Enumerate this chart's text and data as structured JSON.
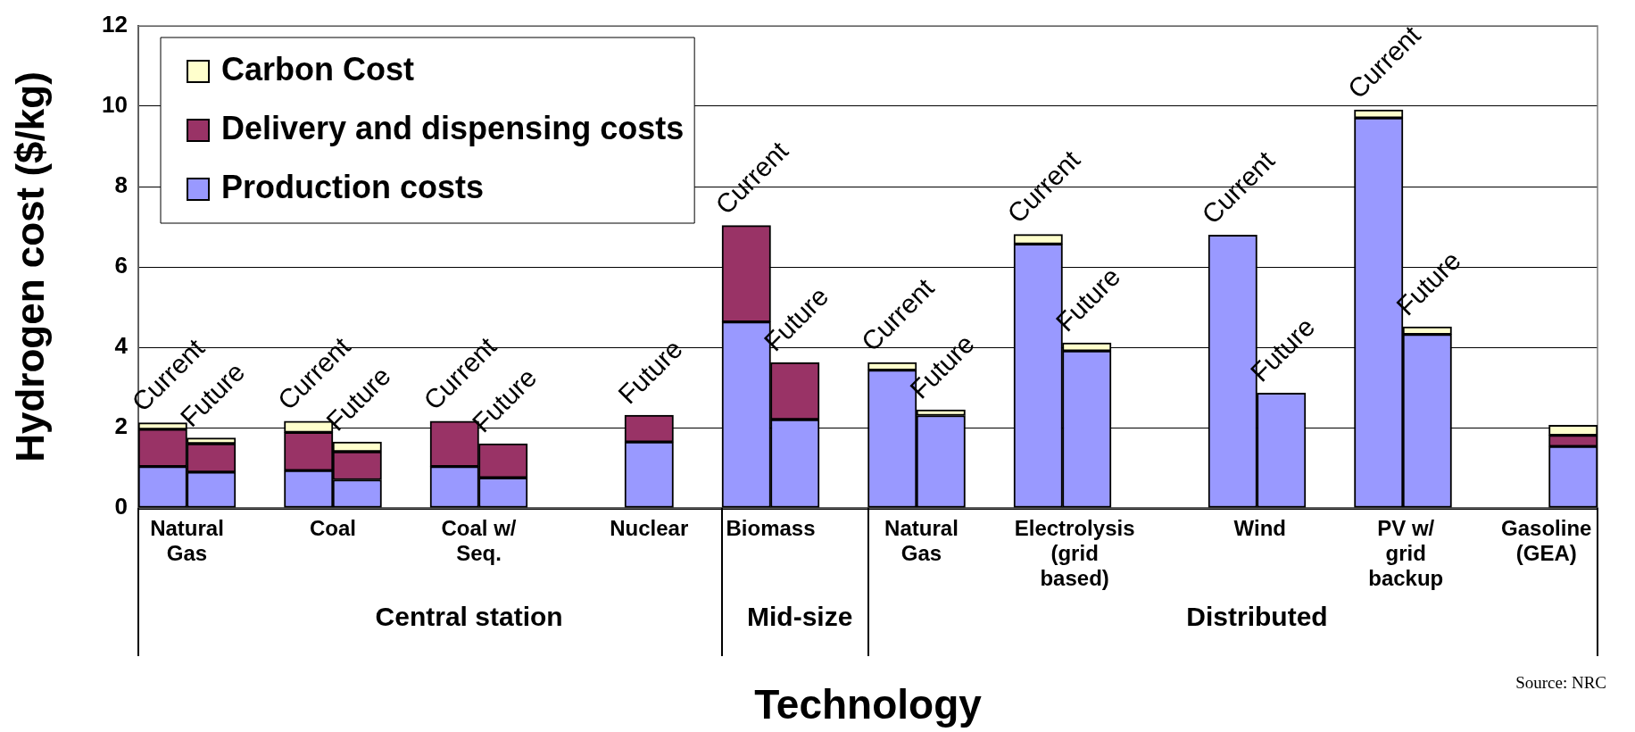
{
  "chart_data": {
    "type": "bar",
    "stacked": true,
    "xlabel": "Technology",
    "ylabel": "Hydrogen cost ($/kg)",
    "categories": [
      null,
      null,
      null,
      null,
      null,
      null,
      null,
      null,
      null,
      null,
      null,
      null,
      null,
      null,
      null,
      null,
      null,
      null,
      null,
      null,
      null,
      null,
      null,
      null,
      null,
      null,
      null,
      null,
      null,
      null
    ],
    "series": [
      {
        "name": "Production costs",
        "color": "#9999ff",
        "values": [
          1.03,
          0.89,
          null,
          0.93,
          0.7,
          null,
          1.03,
          0.75,
          null,
          null,
          1.64,
          null,
          4.63,
          2.2,
          null,
          3.43,
          2.3,
          null,
          6.57,
          3.91,
          null,
          null,
          6.79,
          2.86,
          null,
          9.71,
          4.32,
          null,
          null,
          1.53
        ]
      },
      {
        "name": "Delivery and dispensing costs",
        "color": "#993366",
        "values": [
          0.93,
          0.71,
          null,
          0.95,
          0.7,
          null,
          1.13,
          0.85,
          null,
          null,
          0.67,
          null,
          2.4,
          1.42,
          null,
          null,
          null,
          null,
          null,
          null,
          null,
          null,
          null,
          null,
          null,
          null,
          null,
          null,
          null,
          0.28
        ]
      },
      {
        "name": "Carbon Cost",
        "color": "#ffffcc",
        "values": [
          0.16,
          0.14,
          null,
          0.28,
          0.24,
          null,
          null,
          null,
          null,
          null,
          null,
          null,
          null,
          null,
          null,
          0.19,
          0.14,
          null,
          0.24,
          0.2,
          null,
          null,
          null,
          null,
          null,
          0.2,
          0.19,
          null,
          null,
          0.25
        ]
      }
    ],
    "ylim": [
      0,
      12
    ],
    "yticks": [
      0,
      2,
      4,
      6,
      8,
      10,
      12
    ],
    "grid": "y",
    "legend": "top left",
    "annotations": [
      {
        "text": "Current",
        "y": 2.12
      },
      {
        "text": "Future",
        "y": 1.74
      },
      {
        "text": "Current",
        "y": 2.16
      },
      {
        "text": "Future",
        "y": 1.64
      },
      {
        "text": "Current",
        "y": 2.16
      },
      {
        "text": "Future",
        "y": 1.6
      },
      {
        "text": "Future",
        "y": 2.31
      },
      {
        "text": "Current",
        "y": 7.03
      },
      {
        "text": "Future",
        "y": 3.62
      },
      {
        "text": "Current",
        "y": 3.62
      },
      {
        "text": "Future",
        "y": 2.44
      },
      {
        "text": "Current",
        "y": 6.81
      },
      {
        "text": "Future",
        "y": 4.11
      },
      {
        "text": "Current",
        "y": 6.79
      },
      {
        "text": "Future",
        "y": 2.86
      },
      {
        "text": "Current",
        "y": 9.91
      },
      {
        "text": "Future",
        "y": 4.51
      },
      "Natural Gas",
      "Coal",
      "Coal w/ Seq.",
      "Nuclear",
      "Biomass",
      "Natural Gas",
      "Electrolysis (grid based)",
      "Wind",
      "PV w/ grid backup",
      "Gasoline (GEA)",
      "Central station",
      "Mid-size",
      "Distributed",
      "Source: NRC"
    ]
  }
}
